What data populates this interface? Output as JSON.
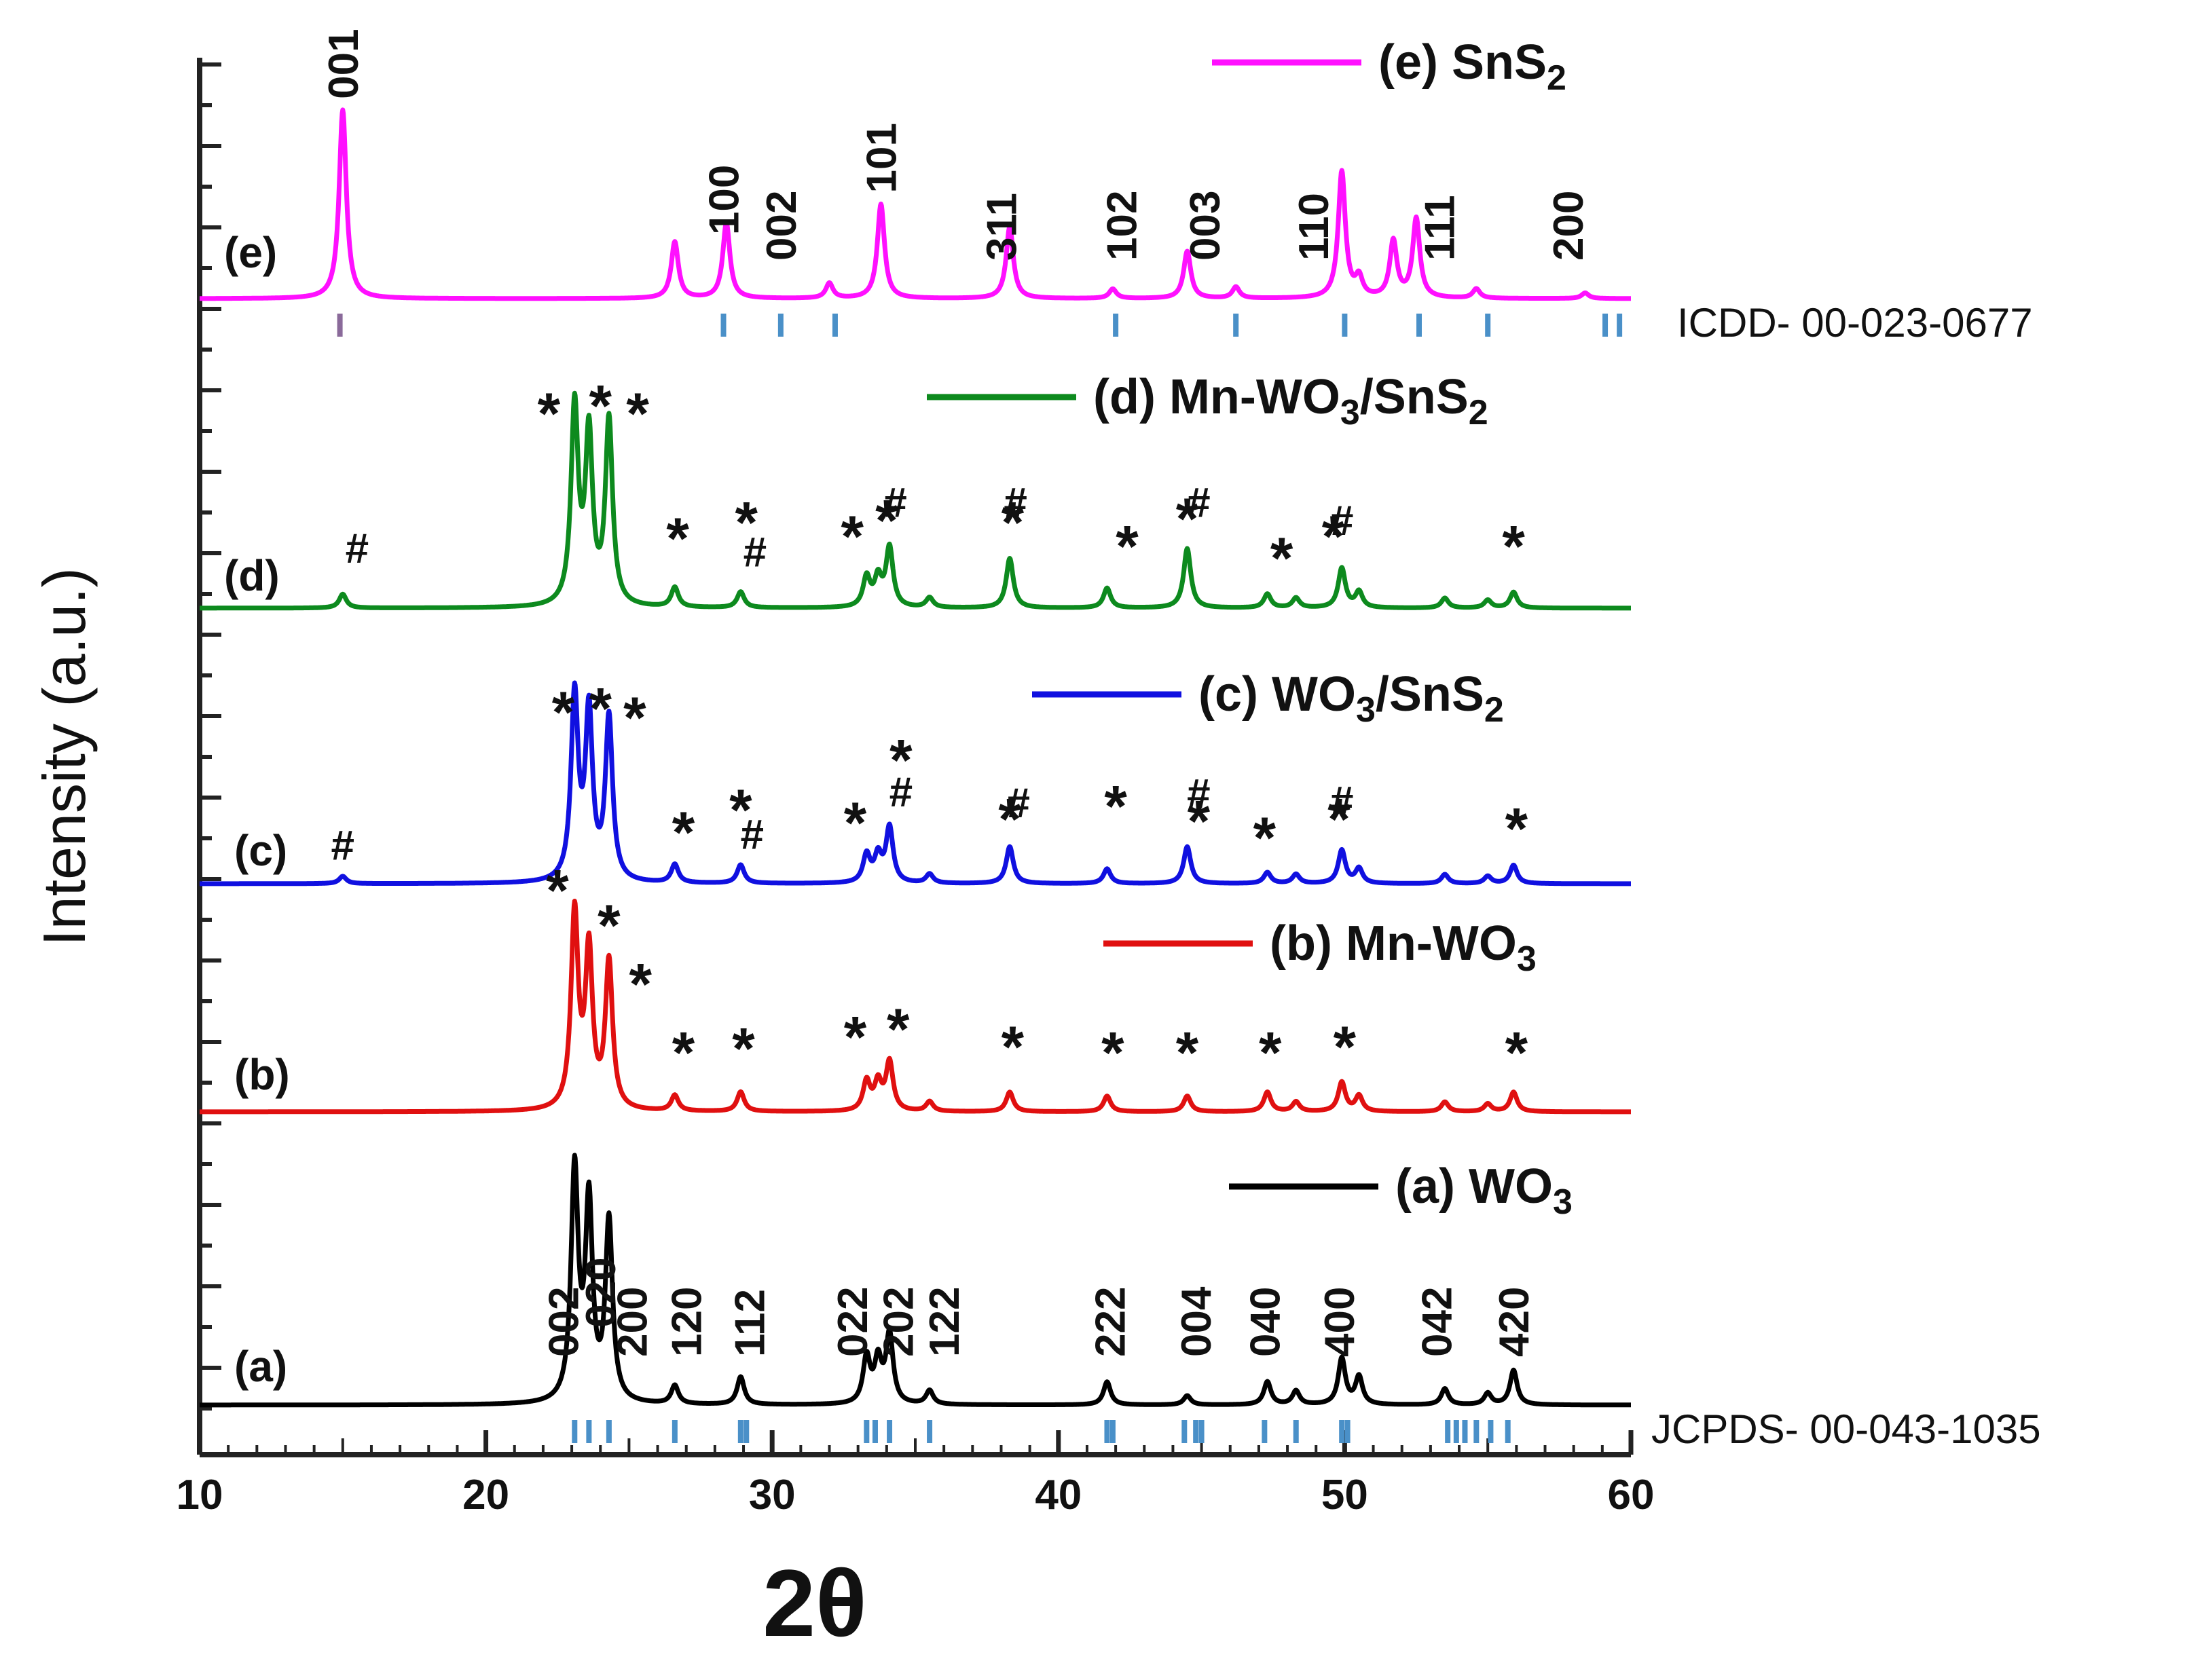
{
  "chart_data": {
    "type": "line",
    "title": "",
    "xlabel": "2θ",
    "ylabel": "Intensity (a.u.)",
    "xlim": [
      10,
      60
    ],
    "xticks": [
      10,
      20,
      30,
      40,
      50,
      60
    ],
    "grid": false,
    "legend_placement": "right of each curve",
    "series": [
      {
        "id": "a",
        "name": "(a) WO3",
        "legend_main": "(a) WO",
        "legend_sub": "3",
        "legend_tail": "",
        "curve_label": "(a)",
        "color": "#000000",
        "baseline": 0.0,
        "peaks": [
          [
            23.1,
            1.0
          ],
          [
            23.6,
            0.85
          ],
          [
            24.3,
            0.78
          ],
          [
            26.6,
            0.08
          ],
          [
            28.9,
            0.12
          ],
          [
            33.3,
            0.2
          ],
          [
            33.7,
            0.18
          ],
          [
            34.1,
            0.3
          ],
          [
            35.5,
            0.06
          ],
          [
            41.7,
            0.1
          ],
          [
            44.5,
            0.04
          ],
          [
            47.3,
            0.1
          ],
          [
            48.3,
            0.06
          ],
          [
            49.9,
            0.2
          ],
          [
            50.5,
            0.12
          ],
          [
            53.5,
            0.07
          ],
          [
            55.0,
            0.05
          ],
          [
            55.9,
            0.15
          ]
        ],
        "ticks_label": "JCPDS- 00-043-1035",
        "ref_ticks": [
          23.1,
          23.6,
          24.3,
          26.6,
          28.9,
          29.1,
          33.3,
          33.6,
          34.1,
          35.5,
          41.7,
          41.9,
          44.4,
          44.8,
          45.0,
          47.2,
          48.3,
          49.9,
          50.1,
          53.6,
          53.9,
          54.2,
          54.6,
          55.1,
          55.7
        ]
      },
      {
        "id": "b",
        "name": "(b) Mn-WO3",
        "legend_main": "(b) Mn-WO",
        "legend_sub": "3",
        "legend_tail": "",
        "curve_label": "(b)",
        "color": "#e01010",
        "baseline": 0.0,
        "peaks": [
          [
            23.1,
            1.0
          ],
          [
            23.6,
            0.8
          ],
          [
            24.3,
            0.75
          ],
          [
            26.6,
            0.08
          ],
          [
            28.9,
            0.1
          ],
          [
            33.3,
            0.15
          ],
          [
            33.7,
            0.14
          ],
          [
            34.1,
            0.25
          ],
          [
            35.5,
            0.05
          ],
          [
            38.3,
            0.1
          ],
          [
            41.7,
            0.08
          ],
          [
            44.5,
            0.08
          ],
          [
            47.3,
            0.1
          ],
          [
            48.3,
            0.05
          ],
          [
            49.9,
            0.15
          ],
          [
            50.5,
            0.08
          ],
          [
            53.5,
            0.05
          ],
          [
            55.0,
            0.04
          ],
          [
            55.9,
            0.1
          ]
        ]
      },
      {
        "id": "c",
        "name": "(c) WO3/SnS2",
        "legend_main": "(c) WO",
        "legend_sub": "3",
        "legend_tail": "/SnS",
        "legend_sub2": "2",
        "curve_label": "(c)",
        "color": "#1010e0",
        "baseline": 0.0,
        "peaks": [
          [
            15.0,
            0.04
          ],
          [
            23.1,
            1.0
          ],
          [
            23.6,
            0.9
          ],
          [
            24.3,
            0.88
          ],
          [
            26.6,
            0.1
          ],
          [
            28.9,
            0.1
          ],
          [
            33.3,
            0.15
          ],
          [
            33.7,
            0.14
          ],
          [
            34.1,
            0.3
          ],
          [
            35.5,
            0.05
          ],
          [
            38.3,
            0.2
          ],
          [
            41.7,
            0.08
          ],
          [
            44.5,
            0.2
          ],
          [
            47.3,
            0.06
          ],
          [
            48.3,
            0.05
          ],
          [
            49.9,
            0.18
          ],
          [
            50.5,
            0.08
          ],
          [
            53.5,
            0.05
          ],
          [
            55.0,
            0.04
          ],
          [
            55.9,
            0.1
          ]
        ]
      },
      {
        "id": "d",
        "name": "(d) Mn-WO3/SnS2",
        "legend_main": "(d) Mn-WO",
        "legend_sub": "3",
        "legend_tail": "/SnS",
        "legend_sub2": "2",
        "curve_label": "(d)",
        "color": "#0d8a1e",
        "baseline": 0.0,
        "peaks": [
          [
            15.0,
            0.07
          ],
          [
            23.1,
            1.0
          ],
          [
            23.6,
            0.85
          ],
          [
            24.3,
            0.93
          ],
          [
            26.6,
            0.1
          ],
          [
            28.9,
            0.08
          ],
          [
            33.3,
            0.15
          ],
          [
            33.7,
            0.14
          ],
          [
            34.1,
            0.3
          ],
          [
            35.5,
            0.05
          ],
          [
            38.3,
            0.25
          ],
          [
            41.7,
            0.1
          ],
          [
            44.5,
            0.3
          ],
          [
            47.3,
            0.07
          ],
          [
            48.3,
            0.05
          ],
          [
            49.9,
            0.2
          ],
          [
            50.5,
            0.08
          ],
          [
            53.5,
            0.05
          ],
          [
            55.0,
            0.04
          ],
          [
            55.9,
            0.08
          ]
        ]
      },
      {
        "id": "e",
        "name": "(e) SnS2",
        "legend_main": "(e) SnS",
        "legend_sub": "2",
        "legend_tail": "",
        "curve_label": "(e)",
        "color": "#ff10ff",
        "baseline": 0.0,
        "peaks": [
          [
            15.0,
            1.0
          ],
          [
            26.6,
            0.3
          ],
          [
            28.4,
            0.4
          ],
          [
            32.0,
            0.08
          ],
          [
            33.8,
            0.5
          ],
          [
            38.3,
            0.38
          ],
          [
            41.9,
            0.05
          ],
          [
            44.5,
            0.25
          ],
          [
            46.2,
            0.06
          ],
          [
            49.9,
            0.67
          ],
          [
            50.5,
            0.1
          ],
          [
            51.7,
            0.3
          ],
          [
            52.5,
            0.42
          ],
          [
            54.6,
            0.05
          ],
          [
            58.4,
            0.03
          ]
        ],
        "ticks_label": "ICDD- 00-023-0677",
        "ref_ticks": [
          14.9,
          28.3,
          30.3,
          32.2,
          42.0,
          46.2,
          50.0,
          52.6,
          55.0,
          59.1,
          59.6
        ]
      }
    ],
    "annotations_a": [
      {
        "text": "002",
        "x": 22.7
      },
      {
        "text": "020",
        "x": 24.0
      },
      {
        "text": "200",
        "x": 25.1
      },
      {
        "text": "120",
        "x": 27.0
      },
      {
        "text": "112",
        "x": 29.2
      },
      {
        "text": "022",
        "x": 32.8
      },
      {
        "text": "202",
        "x": 34.4
      },
      {
        "text": "122",
        "x": 36.0
      },
      {
        "text": "222",
        "x": 41.8
      },
      {
        "text": "004",
        "x": 44.8
      },
      {
        "text": "040",
        "x": 47.2
      },
      {
        "text": "400",
        "x": 49.8
      },
      {
        "text": "042",
        "x": 53.2
      },
      {
        "text": "420",
        "x": 55.9
      }
    ],
    "annotations_e": [
      {
        "text": "001",
        "x": 15.0
      },
      {
        "text": "100",
        "x": 28.3
      },
      {
        "text": "002",
        "x": 30.3
      },
      {
        "text": "101",
        "x": 33.8
      },
      {
        "text": "311",
        "x": 38.0
      },
      {
        "text": "102",
        "x": 42.2
      },
      {
        "text": "003",
        "x": 45.1
      },
      {
        "text": "110",
        "x": 48.9
      },
      {
        "text": "111",
        "x": 53.3
      },
      {
        "text": "200",
        "x": 57.8
      }
    ],
    "markers_b": [
      {
        "text": "*",
        "x": 22.5,
        "lv": 1.03
      },
      {
        "text": "*",
        "x": 24.3,
        "lv": 0.85
      },
      {
        "text": "*",
        "x": 25.4,
        "lv": 0.55
      },
      {
        "text": "*",
        "x": 26.9,
        "lv": 0.2
      },
      {
        "text": "*",
        "x": 29.0,
        "lv": 0.22
      },
      {
        "text": "*",
        "x": 32.9,
        "lv": 0.28
      },
      {
        "text": "*",
        "x": 34.4,
        "lv": 0.32
      },
      {
        "text": "*",
        "x": 38.4,
        "lv": 0.23
      },
      {
        "text": "*",
        "x": 41.9,
        "lv": 0.2
      },
      {
        "text": "*",
        "x": 44.5,
        "lv": 0.2
      },
      {
        "text": "*",
        "x": 47.4,
        "lv": 0.2
      },
      {
        "text": "*",
        "x": 50.0,
        "lv": 0.23
      },
      {
        "text": "*",
        "x": 56.0,
        "lv": 0.2
      }
    ],
    "markers_c": [
      {
        "text": "#",
        "x": 15.0,
        "lv": 0.13
      },
      {
        "text": "*",
        "x": 22.7,
        "lv": 0.82
      },
      {
        "text": "*",
        "x": 24.0,
        "lv": 0.84
      },
      {
        "text": "*",
        "x": 25.2,
        "lv": 0.79
      },
      {
        "text": "*",
        "x": 26.9,
        "lv": 0.17
      },
      {
        "text": "*",
        "x": 28.9,
        "lv": 0.29
      },
      {
        "text": "#",
        "x": 29.3,
        "lv": 0.19
      },
      {
        "text": "*",
        "x": 32.9,
        "lv": 0.22
      },
      {
        "text": "*",
        "x": 34.5,
        "lv": 0.56
      },
      {
        "text": "#",
        "x": 34.5,
        "lv": 0.42
      },
      {
        "text": "#",
        "x": 38.6,
        "lv": 0.36
      },
      {
        "text": "*",
        "x": 38.3,
        "lv": 0.24
      },
      {
        "text": "*",
        "x": 42.0,
        "lv": 0.31
      },
      {
        "text": "#",
        "x": 44.9,
        "lv": 0.41
      },
      {
        "text": "*",
        "x": 44.9,
        "lv": 0.23
      },
      {
        "text": "*",
        "x": 47.2,
        "lv": 0.14
      },
      {
        "text": "#",
        "x": 49.9,
        "lv": 0.37
      },
      {
        "text": "*",
        "x": 49.8,
        "lv": 0.24
      },
      {
        "text": "*",
        "x": 56.0,
        "lv": 0.19
      }
    ],
    "markers_d": [
      {
        "text": "*",
        "x": 22.2,
        "lv": 0.88
      },
      {
        "text": "*",
        "x": 24.0,
        "lv": 0.92
      },
      {
        "text": "*",
        "x": 25.3,
        "lv": 0.88
      },
      {
        "text": "#",
        "x": 15.5,
        "lv": 0.23
      },
      {
        "text": "*",
        "x": 26.7,
        "lv": 0.25
      },
      {
        "text": "*",
        "x": 29.1,
        "lv": 0.33
      },
      {
        "text": "#",
        "x": 29.4,
        "lv": 0.21
      },
      {
        "text": "*",
        "x": 32.8,
        "lv": 0.26
      },
      {
        "text": "#",
        "x": 34.3,
        "lv": 0.46
      },
      {
        "text": "*",
        "x": 34.0,
        "lv": 0.34
      },
      {
        "text": "#",
        "x": 38.5,
        "lv": 0.46
      },
      {
        "text": "*",
        "x": 38.4,
        "lv": 0.33
      },
      {
        "text": "*",
        "x": 42.4,
        "lv": 0.21
      },
      {
        "text": "#",
        "x": 44.9,
        "lv": 0.46
      },
      {
        "text": "*",
        "x": 44.5,
        "lv": 0.35
      },
      {
        "text": "*",
        "x": 47.8,
        "lv": 0.15
      },
      {
        "text": "#",
        "x": 49.9,
        "lv": 0.37
      },
      {
        "text": "*",
        "x": 49.6,
        "lv": 0.26
      },
      {
        "text": "*",
        "x": 55.9,
        "lv": 0.21
      }
    ]
  }
}
